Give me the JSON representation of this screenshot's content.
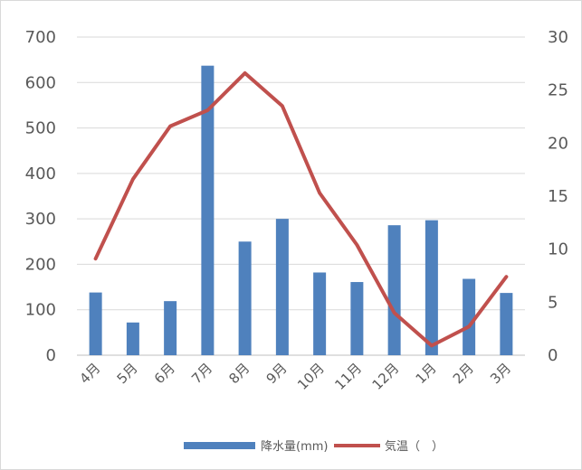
{
  "chart_data": {
    "type": "bar+line",
    "categories": [
      "4月",
      "5月",
      "6月",
      "7月",
      "8月",
      "9月",
      "10月",
      "11月",
      "12月",
      "1月",
      "2月",
      "3月"
    ],
    "series": [
      {
        "name": "降水量(mm)",
        "type": "bar",
        "axis": "left",
        "color": "#4f81bd",
        "values": [
          138,
          72,
          119,
          637,
          250,
          300,
          182,
          161,
          286,
          297,
          168,
          137
        ]
      },
      {
        "name": "気温（　）",
        "type": "line",
        "axis": "right",
        "color": "#c0504d",
        "values": [
          9.1,
          16.6,
          21.6,
          23.1,
          26.6,
          23.5,
          15.3,
          10.4,
          4.0,
          0.9,
          2.7,
          7.4
        ]
      }
    ],
    "y_left": {
      "ticks": [
        "0",
        "100",
        "200",
        "300",
        "400",
        "500",
        "600",
        "700"
      ],
      "ylim": [
        0,
        700
      ]
    },
    "y_right": {
      "ticks": [
        "0",
        "5",
        "10",
        "15",
        "20",
        "25",
        "30"
      ],
      "ylim": [
        0,
        30
      ]
    },
    "grid": true,
    "legend": "bottom"
  }
}
